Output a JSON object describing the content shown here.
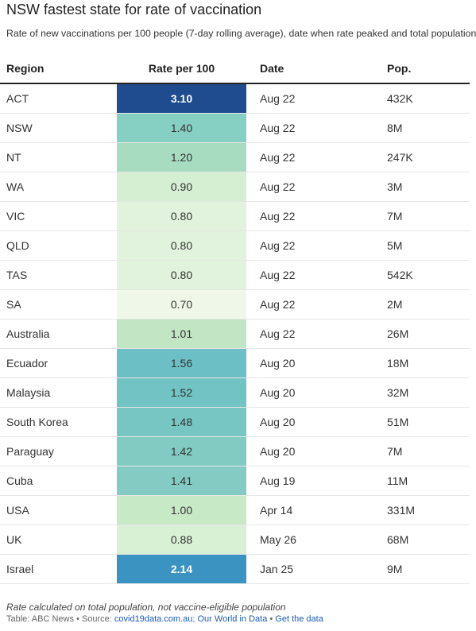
{
  "header": {
    "title": "NSW fastest state for rate of vaccination",
    "subtitle": "Rate of new vaccinations per 100 people (7-day rolling average), date when rate peaked and total population"
  },
  "chart_data": {
    "type": "table",
    "columns": [
      "Region",
      "Rate per 100",
      "Date",
      "Pop."
    ],
    "rows": [
      {
        "region": "ACT",
        "rate": 3.1,
        "rate_label": "3.10",
        "date": "Aug 22",
        "pop": "432K",
        "bg": "#1f4b8f",
        "fg": "#ffffff",
        "bold": true
      },
      {
        "region": "NSW",
        "rate": 1.4,
        "rate_label": "1.40",
        "date": "Aug 22",
        "pop": "8M",
        "bg": "#86cfc3",
        "fg": "#333333",
        "bold": false
      },
      {
        "region": "NT",
        "rate": 1.2,
        "rate_label": "1.20",
        "date": "Aug 22",
        "pop": "247K",
        "bg": "#a8dcc1",
        "fg": "#333333",
        "bold": false
      },
      {
        "region": "WA",
        "rate": 0.9,
        "rate_label": "0.90",
        "date": "Aug 22",
        "pop": "3M",
        "bg": "#d5efd3",
        "fg": "#333333",
        "bold": false
      },
      {
        "region": "VIC",
        "rate": 0.8,
        "rate_label": "0.80",
        "date": "Aug 22",
        "pop": "7M",
        "bg": "#e1f3dc",
        "fg": "#333333",
        "bold": false
      },
      {
        "region": "QLD",
        "rate": 0.8,
        "rate_label": "0.80",
        "date": "Aug 22",
        "pop": "5M",
        "bg": "#e1f3dc",
        "fg": "#333333",
        "bold": false
      },
      {
        "region": "TAS",
        "rate": 0.8,
        "rate_label": "0.80",
        "date": "Aug 22",
        "pop": "542K",
        "bg": "#e1f3dc",
        "fg": "#333333",
        "bold": false
      },
      {
        "region": "SA",
        "rate": 0.7,
        "rate_label": "0.70",
        "date": "Aug 22",
        "pop": "2M",
        "bg": "#eff8e8",
        "fg": "#333333",
        "bold": false
      },
      {
        "region": "Australia",
        "rate": 1.01,
        "rate_label": "1.01",
        "date": "Aug 22",
        "pop": "26M",
        "bg": "#c2e6c4",
        "fg": "#333333",
        "bold": false
      },
      {
        "region": "Ecuador",
        "rate": 1.56,
        "rate_label": "1.56",
        "date": "Aug 20",
        "pop": "18M",
        "bg": "#6cc0c5",
        "fg": "#333333",
        "bold": false
      },
      {
        "region": "Malaysia",
        "rate": 1.52,
        "rate_label": "1.52",
        "date": "Aug 20",
        "pop": "32M",
        "bg": "#71c3c4",
        "fg": "#333333",
        "bold": false
      },
      {
        "region": "South Korea",
        "rate": 1.48,
        "rate_label": "1.48",
        "date": "Aug 20",
        "pop": "51M",
        "bg": "#77c6c4",
        "fg": "#333333",
        "bold": false
      },
      {
        "region": "Paraguay",
        "rate": 1.42,
        "rate_label": "1.42",
        "date": "Aug 20",
        "pop": "7M",
        "bg": "#81cbc3",
        "fg": "#333333",
        "bold": false
      },
      {
        "region": "Cuba",
        "rate": 1.41,
        "rate_label": "1.41",
        "date": "Aug 19",
        "pop": "11M",
        "bg": "#84ccc3",
        "fg": "#333333",
        "bold": false
      },
      {
        "region": "USA",
        "rate": 1.0,
        "rate_label": "1.00",
        "date": "Apr 14",
        "pop": "331M",
        "bg": "#c8e9c6",
        "fg": "#333333",
        "bold": false
      },
      {
        "region": "UK",
        "rate": 0.88,
        "rate_label": "0.88",
        "date": "May 26",
        "pop": "68M",
        "bg": "#d8f0d4",
        "fg": "#333333",
        "bold": false
      },
      {
        "region": "Israel",
        "rate": 2.14,
        "rate_label": "2.14",
        "date": "Jan 25",
        "pop": "9M",
        "bg": "#3b93c2",
        "fg": "#ffffff",
        "bold": true
      }
    ]
  },
  "footer": {
    "note": "Rate calculated on total population, not vaccine-eligible population",
    "table_credit": "Table: ABC News • Source: ",
    "link1": "covid19data.com.au",
    "sep1": "; ",
    "link2": "Our World in Data",
    "sep2": " • ",
    "link3": "Get the data"
  }
}
